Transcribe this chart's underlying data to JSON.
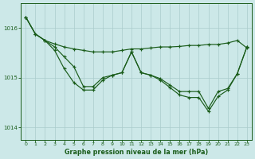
{
  "background_color": "#cce8e8",
  "grid_color": "#aacccc",
  "line_color": "#1a5c1a",
  "xlabel": "Graphe pression niveau de la mer (hPa)",
  "ylim": [
    1013.75,
    1016.5
  ],
  "yticks": [
    1014,
    1015,
    1016
  ],
  "xlim": [
    -0.5,
    23.5
  ],
  "xtick_labels": [
    "0",
    "1",
    "2",
    "3",
    "4",
    "5",
    "6",
    "7",
    "8",
    "9",
    "10",
    "11",
    "12",
    "13",
    "14",
    "15",
    "16",
    "17",
    "18",
    "19",
    "20",
    "21",
    "22",
    "23"
  ],
  "series1": [
    1016.22,
    1015.88,
    1015.75,
    1015.68,
    1015.62,
    1015.58,
    1015.55,
    1015.52,
    1015.52,
    1015.52,
    1015.55,
    1015.58,
    1015.58,
    1015.6,
    1015.62,
    1015.62,
    1015.63,
    1015.65,
    1015.65,
    1015.67,
    1015.67,
    1015.7,
    1015.75,
    1015.6
  ],
  "series2": [
    1016.22,
    1015.88,
    1015.75,
    1015.62,
    1015.42,
    1015.22,
    1014.82,
    1014.82,
    1015.0,
    1015.05,
    1015.1,
    1015.52,
    1015.1,
    1015.05,
    1014.98,
    1014.85,
    1014.72,
    1014.72,
    1014.72,
    1014.38,
    1014.72,
    1014.78,
    1015.08,
    1015.62
  ],
  "series3": [
    1016.22,
    1015.88,
    1015.75,
    1015.55,
    1015.18,
    1014.9,
    1014.75,
    1014.75,
    1014.95,
    1015.05,
    1015.1,
    1015.52,
    1015.1,
    1015.05,
    1014.95,
    1014.8,
    1014.65,
    1014.6,
    1014.6,
    1014.32,
    1014.62,
    1014.75,
    1015.08,
    1015.62
  ]
}
